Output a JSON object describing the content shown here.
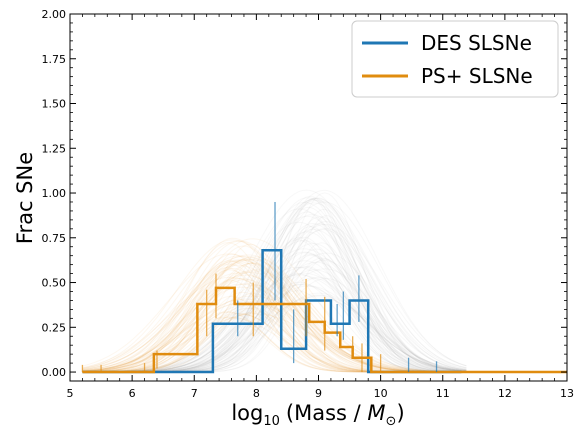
{
  "chart_data": {
    "type": "line",
    "title": "",
    "xlabel": "log",
    "xlabel_sub": "10",
    "xlabel_paren": "(Mass / ",
    "xlabel_M": "M",
    "xlabel_sun": "⊙",
    "xlabel_close": ")",
    "ylabel": "Frac SNe",
    "xlim": [
      5,
      13
    ],
    "ylim": [
      -0.05,
      2.0
    ],
    "xticks": [
      "5",
      "6",
      "7",
      "8",
      "9",
      "10",
      "11",
      "12",
      "13"
    ],
    "yticks": [
      "0.00",
      "0.25",
      "0.50",
      "0.75",
      "1.00",
      "1.25",
      "1.50",
      "1.75",
      "2.00"
    ],
    "legend_position": "top-right",
    "series": [
      {
        "name": "DES SLSNe",
        "color": "#1f77b4",
        "band_color": "#a0a0a0",
        "band_center": 8.9,
        "band_sigma": 0.75,
        "band_peak": 0.68,
        "bin_edges": [
          6.4,
          6.7,
          7.0,
          7.3,
          7.6,
          7.9,
          8.1,
          8.4,
          8.8,
          9.2,
          9.5,
          9.8
        ],
        "step_values": [
          0.0,
          0.0,
          0.0,
          0.27,
          0.27,
          0.27,
          0.68,
          0.13,
          0.4,
          0.27,
          0.4
        ],
        "errorbars": [
          {
            "x": 7.7,
            "low": 0.2,
            "high": 0.4
          },
          {
            "x": 8.3,
            "low": 0.4,
            "high": 0.95
          },
          {
            "x": 8.6,
            "low": 0.05,
            "high": 0.35
          },
          {
            "x": 9.4,
            "low": 0.18,
            "high": 0.45
          },
          {
            "x": 9.3,
            "low": 0.2,
            "high": 0.38
          },
          {
            "x": 9.65,
            "low": 0.28,
            "high": 0.54
          },
          {
            "x": 10.45,
            "low": 0.0,
            "high": 0.08
          },
          {
            "x": 10.9,
            "low": 0.0,
            "high": 0.06
          }
        ]
      },
      {
        "name": "PS+ SLSNe",
        "color": "#e08c0f",
        "band_color": "#e8a84a",
        "band_center": 7.75,
        "band_sigma": 0.8,
        "band_peak": 0.5,
        "bin_edges": [
          6.35,
          6.55,
          6.7,
          7.05,
          7.35,
          7.65,
          8.0,
          8.85,
          9.1,
          9.35,
          9.55,
          9.85
        ],
        "step_values": [
          0.1,
          0.1,
          0.1,
          0.38,
          0.47,
          0.38,
          0.38,
          0.28,
          0.22,
          0.14,
          0.08
        ],
        "errorbars": [
          {
            "x": 5.2,
            "low": 0.0,
            "high": 0.04
          },
          {
            "x": 5.5,
            "low": 0.0,
            "high": 0.04
          },
          {
            "x": 6.2,
            "low": 0.0,
            "high": 0.05
          },
          {
            "x": 6.4,
            "low": 0.02,
            "high": 0.12
          },
          {
            "x": 7.2,
            "low": 0.2,
            "high": 0.46
          },
          {
            "x": 7.35,
            "low": 0.3,
            "high": 0.55
          },
          {
            "x": 7.95,
            "low": 0.2,
            "high": 0.5
          },
          {
            "x": 8.8,
            "low": 0.2,
            "high": 0.52
          },
          {
            "x": 9.1,
            "low": 0.12,
            "high": 0.42
          },
          {
            "x": 9.55,
            "low": 0.1,
            "high": 0.2
          },
          {
            "x": 9.7,
            "low": 0.0,
            "high": 0.16
          },
          {
            "x": 10.0,
            "low": 0.0,
            "high": 0.1
          }
        ]
      }
    ]
  }
}
